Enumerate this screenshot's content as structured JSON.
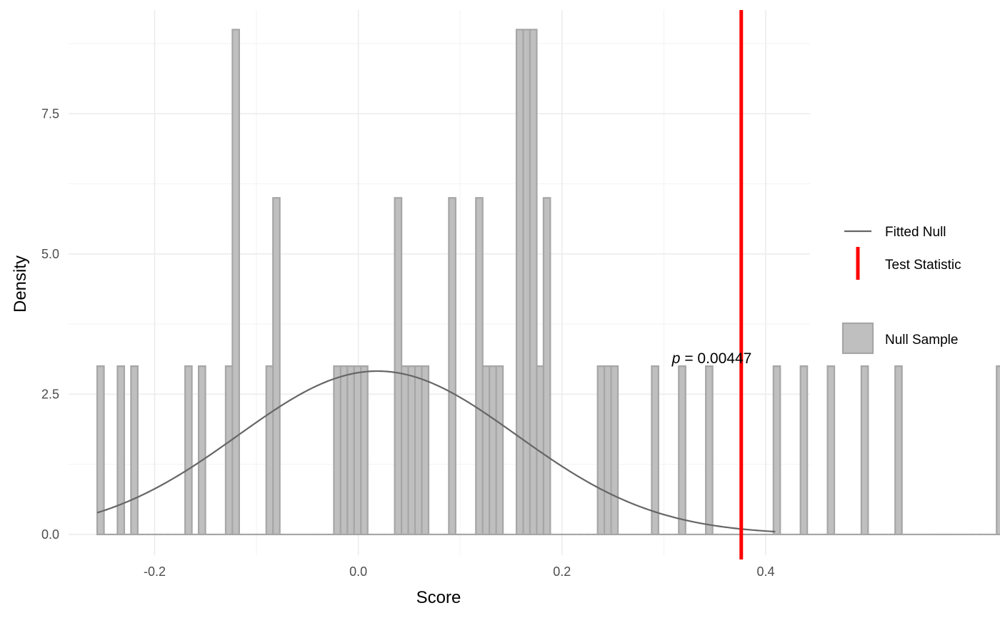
{
  "chart_data": {
    "type": "bar",
    "xlabel": "Score",
    "ylabel": "Density",
    "xlim": [
      -0.2845,
      0.4435
    ],
    "ylim": [
      -0.37,
      9.35
    ],
    "x_ticks": [
      -0.2,
      0.0,
      0.2,
      0.4
    ],
    "x_tick_labels": [
      "-0.2",
      "0.0",
      "0.2",
      "0.4"
    ],
    "y_ticks": [
      0.0,
      2.5,
      5.0,
      7.5
    ],
    "y_tick_labels": [
      "0.0",
      "2.5",
      "5.0",
      "7.5"
    ],
    "grid": true,
    "bin_start": -0.2564,
    "bin_width": 0.00664,
    "series": [
      {
        "name": "Null Sample",
        "type": "histogram",
        "fill": "#bfbfbf",
        "stroke": "#a6a6a6",
        "values": [
          3,
          0,
          0,
          3,
          0,
          3,
          0,
          0,
          0,
          0,
          0,
          0,
          0,
          3,
          0,
          3,
          0,
          0,
          0,
          3,
          9,
          0,
          0,
          0,
          0,
          3,
          6,
          0,
          0,
          0,
          0,
          0,
          0,
          0,
          0,
          3,
          3,
          3,
          3,
          3,
          0,
          0,
          0,
          0,
          6,
          3,
          3,
          3,
          3,
          0,
          0,
          0,
          6,
          0,
          0,
          0,
          6,
          3,
          3,
          3,
          0,
          0,
          9,
          9,
          9,
          3,
          6,
          0,
          0,
          0,
          0,
          0,
          0,
          0,
          3,
          3,
          3,
          0,
          0,
          0,
          0,
          0,
          3,
          0,
          0,
          0,
          3,
          0,
          0,
          0,
          3,
          0,
          0,
          0,
          0,
          0,
          0,
          0,
          0,
          0,
          3,
          0,
          0,
          0,
          3,
          0,
          0,
          0,
          3,
          0,
          0,
          0,
          0,
          3,
          0,
          0,
          0,
          0,
          3,
          0,
          0,
          0,
          0,
          0,
          0,
          0,
          0,
          0,
          0,
          0,
          0,
          0,
          0,
          3
        ]
      },
      {
        "name": "Fitted Null",
        "type": "line",
        "color": "#666666",
        "mean": 0.0188,
        "sd": 0.137,
        "x_range": [
          -0.2564,
          0.4094
        ]
      },
      {
        "name": "Test Statistic",
        "type": "vline",
        "color": "#ff0000",
        "x": 0.376
      }
    ],
    "annotation": {
      "italic_prefix": "p",
      "text": " = 0.00447",
      "x": 0.308,
      "y": 3.05
    },
    "legend": {
      "placement": "right",
      "items": [
        {
          "label": "Fitted Null",
          "key": "line",
          "color": "#666666"
        },
        {
          "label": "Test Statistic",
          "key": "vline",
          "color": "#ff0000"
        },
        {
          "label": "Null Sample",
          "key": "box",
          "fill": "#bfbfbf",
          "stroke": "#a6a6a6"
        }
      ]
    }
  }
}
